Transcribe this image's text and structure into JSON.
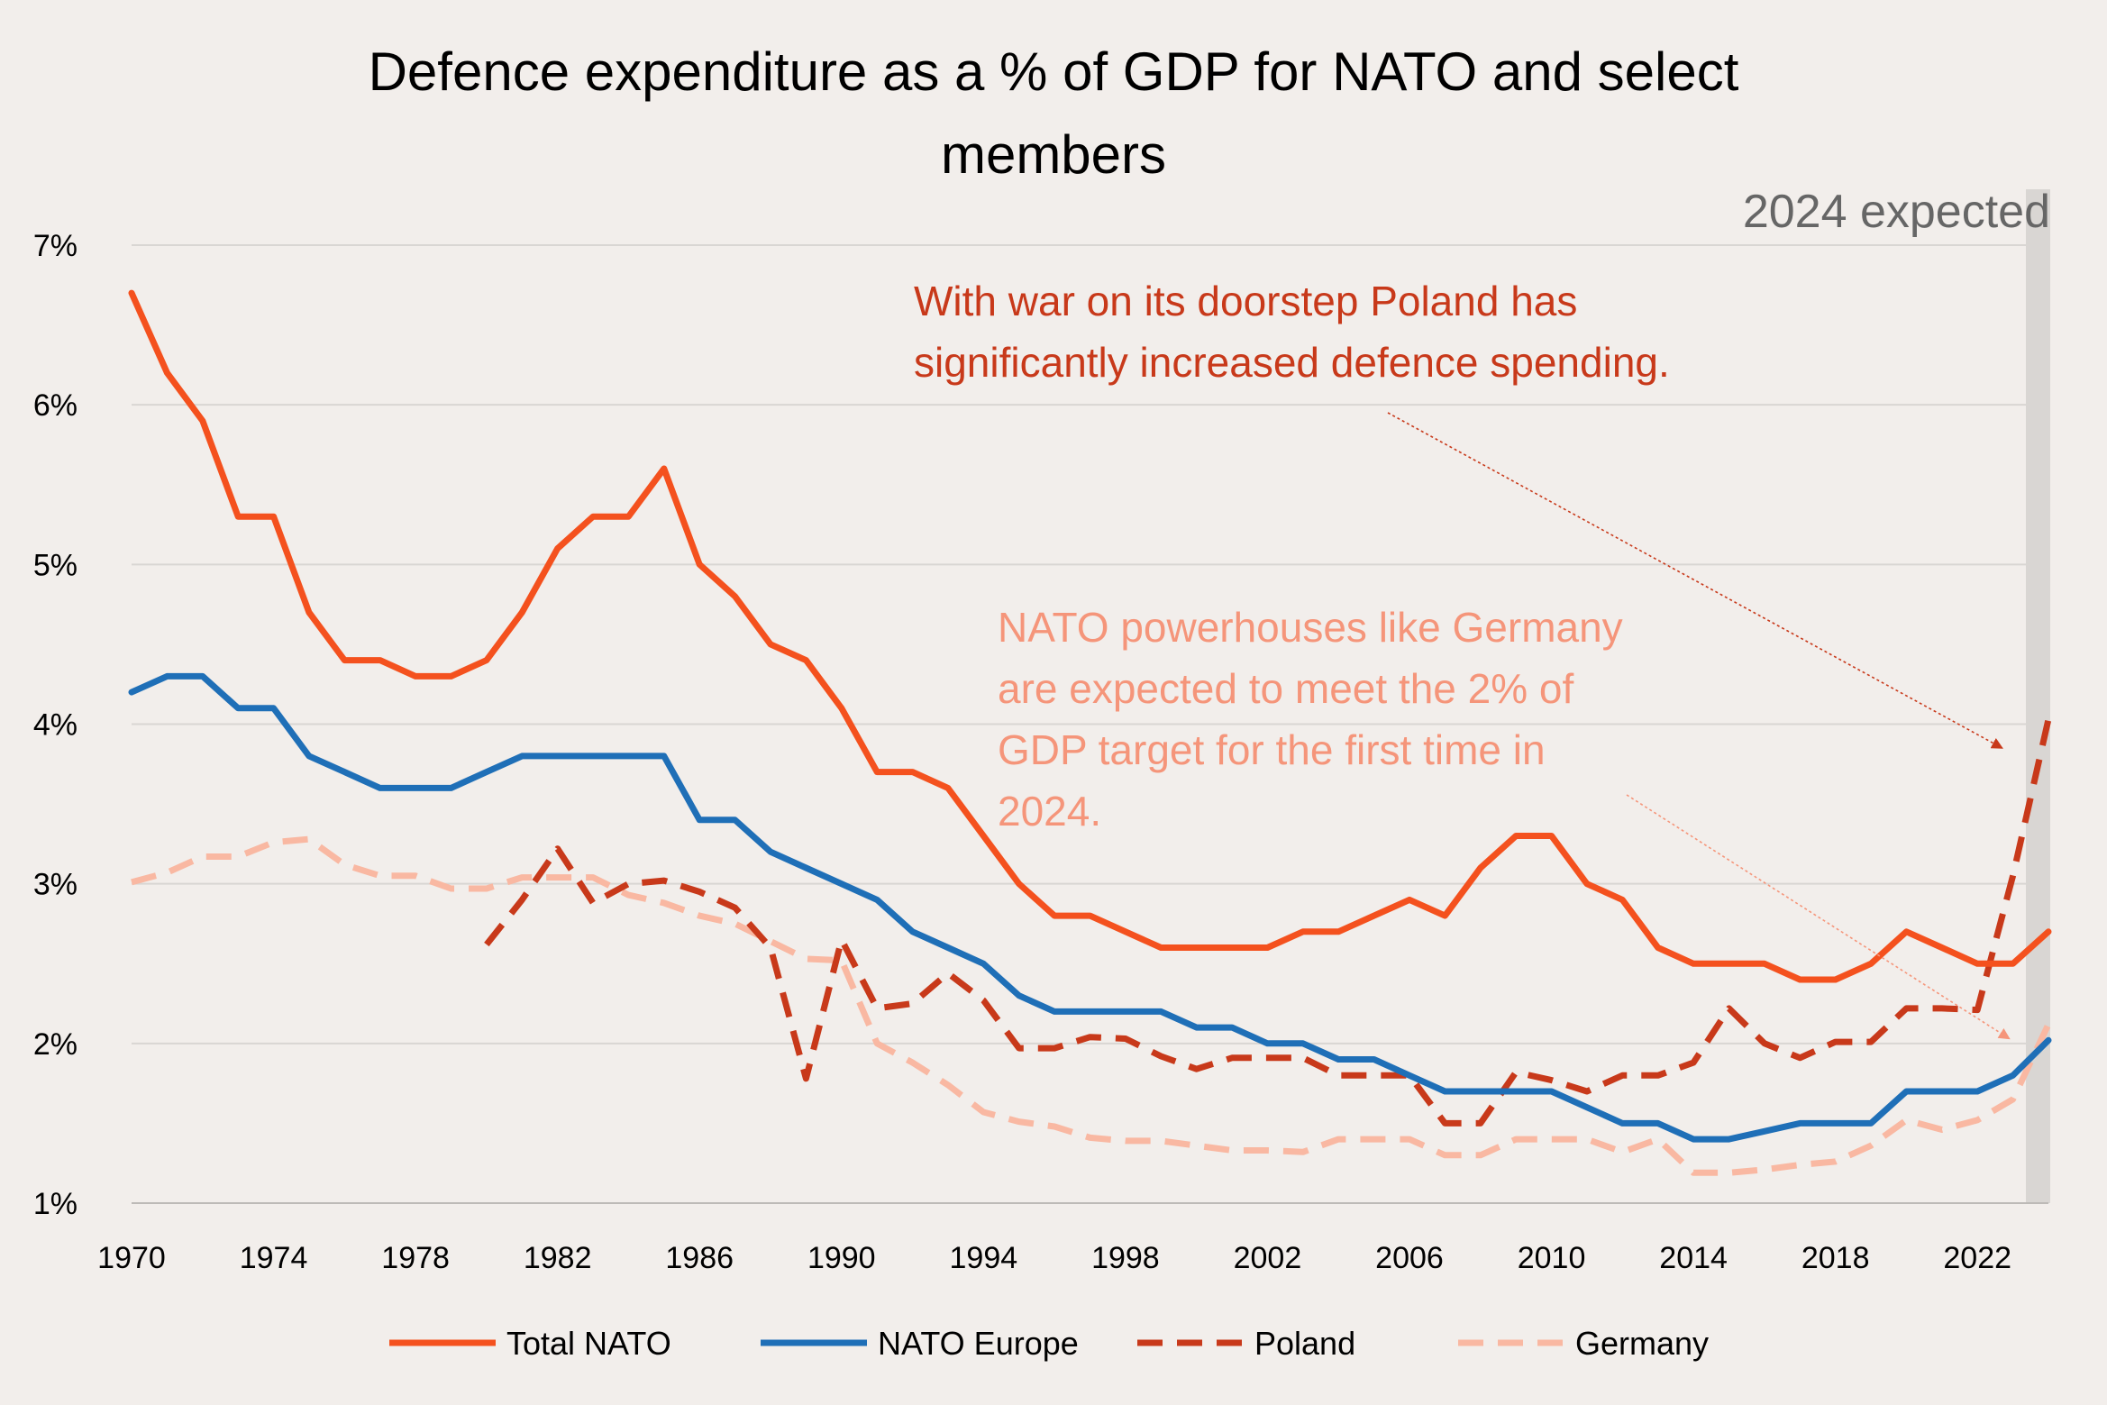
{
  "chart_data": {
    "type": "line",
    "title": "Defence expenditure as a % of GDP for NATO and select members",
    "xlabel": "",
    "ylabel": "",
    "xlim": [
      1970,
      2024
    ],
    "ylim": [
      1,
      7
    ],
    "x_ticks": [
      "1970",
      "1974",
      "1978",
      "1982",
      "1986",
      "1990",
      "1994",
      "1998",
      "2002",
      "2006",
      "2010",
      "2014",
      "2018",
      "2022"
    ],
    "y_ticks": [
      "1%",
      "2%",
      "3%",
      "4%",
      "5%",
      "6%",
      "7%"
    ],
    "grid": "horizontal",
    "legend_position": "bottom",
    "highlight": {
      "label": "2024 expected",
      "x": 2024,
      "color": "#d9d6d3"
    },
    "series": [
      {
        "name": "Total NATO",
        "color": "#f4511e",
        "style": "solid",
        "x": [
          1970,
          1971,
          1972,
          1973,
          1974,
          1975,
          1976,
          1977,
          1978,
          1979,
          1980,
          1981,
          1982,
          1983,
          1984,
          1985,
          1986,
          1987,
          1988,
          1989,
          1990,
          1991,
          1992,
          1993,
          1994,
          1995,
          1996,
          1997,
          1998,
          1999,
          2000,
          2001,
          2002,
          2003,
          2004,
          2005,
          2006,
          2007,
          2008,
          2009,
          2010,
          2011,
          2012,
          2013,
          2014,
          2015,
          2016,
          2017,
          2018,
          2019,
          2020,
          2021,
          2022,
          2023,
          2024
        ],
        "values": [
          6.7,
          6.2,
          5.9,
          5.3,
          5.3,
          4.7,
          4.4,
          4.4,
          4.3,
          4.3,
          4.4,
          4.7,
          5.1,
          5.3,
          5.3,
          5.6,
          5.0,
          4.8,
          4.5,
          4.4,
          4.1,
          3.7,
          3.7,
          3.6,
          3.3,
          3.0,
          2.8,
          2.8,
          2.7,
          2.6,
          2.6,
          2.6,
          2.6,
          2.7,
          2.7,
          2.8,
          2.9,
          2.8,
          3.1,
          3.3,
          3.3,
          3.0,
          2.9,
          2.6,
          2.5,
          2.5,
          2.5,
          2.4,
          2.4,
          2.5,
          2.7,
          2.6,
          2.5,
          2.5,
          2.7
        ]
      },
      {
        "name": "NATO Europe",
        "color": "#1f6fb7",
        "style": "solid",
        "x": [
          1970,
          1971,
          1972,
          1973,
          1974,
          1975,
          1976,
          1977,
          1978,
          1979,
          1980,
          1981,
          1982,
          1983,
          1984,
          1985,
          1986,
          1987,
          1988,
          1989,
          1990,
          1991,
          1992,
          1993,
          1994,
          1995,
          1996,
          1997,
          1998,
          1999,
          2000,
          2001,
          2002,
          2003,
          2004,
          2005,
          2006,
          2007,
          2008,
          2009,
          2010,
          2011,
          2012,
          2013,
          2014,
          2015,
          2016,
          2017,
          2018,
          2019,
          2020,
          2021,
          2022,
          2023,
          2024
        ],
        "values": [
          4.2,
          4.3,
          4.3,
          4.1,
          4.1,
          3.8,
          3.7,
          3.6,
          3.6,
          3.6,
          3.7,
          3.8,
          3.8,
          3.8,
          3.8,
          3.8,
          3.4,
          3.4,
          3.2,
          3.1,
          3.0,
          2.9,
          2.7,
          2.6,
          2.5,
          2.3,
          2.2,
          2.2,
          2.2,
          2.2,
          2.1,
          2.1,
          2.0,
          2.0,
          1.9,
          1.9,
          1.8,
          1.7,
          1.7,
          1.7,
          1.7,
          1.6,
          1.5,
          1.5,
          1.4,
          1.4,
          1.45,
          1.5,
          1.5,
          1.5,
          1.7,
          1.7,
          1.7,
          1.8,
          2.02
        ]
      },
      {
        "name": "Poland",
        "color": "#c8391a",
        "style": "dashed",
        "x": [
          1980,
          1981,
          1982,
          1983,
          1984,
          1985,
          1986,
          1987,
          1988,
          1989,
          1990,
          1991,
          1992,
          1993,
          1994,
          1995,
          1996,
          1997,
          1998,
          1999,
          2000,
          2001,
          2002,
          2003,
          2004,
          2005,
          2006,
          2007,
          2008,
          2009,
          2010,
          2011,
          2012,
          2013,
          2014,
          2015,
          2016,
          2017,
          2018,
          2019,
          2020,
          2021,
          2022,
          2023,
          2024
        ],
        "values": [
          2.62,
          2.9,
          3.22,
          2.88,
          3.0,
          3.02,
          2.95,
          2.85,
          2.6,
          1.78,
          2.65,
          2.22,
          2.25,
          2.44,
          2.27,
          1.97,
          1.97,
          2.04,
          2.03,
          1.92,
          1.84,
          1.91,
          1.91,
          1.91,
          1.8,
          1.8,
          1.8,
          1.5,
          1.5,
          1.82,
          1.77,
          1.7,
          1.8,
          1.8,
          1.88,
          2.22,
          2.0,
          1.91,
          2.01,
          2.01,
          2.22,
          2.22,
          2.21,
          3.05,
          4.03
        ]
      },
      {
        "name": "Germany",
        "color": "#f9b8a2",
        "style": "dashed",
        "x": [
          1970,
          1971,
          1972,
          1973,
          1974,
          1975,
          1976,
          1977,
          1978,
          1979,
          1980,
          1981,
          1982,
          1983,
          1984,
          1985,
          1986,
          1987,
          1988,
          1989,
          1990,
          1991,
          1992,
          1993,
          1994,
          1995,
          1996,
          1997,
          1998,
          1999,
          2000,
          2001,
          2002,
          2003,
          2004,
          2005,
          2006,
          2007,
          2008,
          2009,
          2010,
          2011,
          2012,
          2013,
          2014,
          2015,
          2016,
          2017,
          2018,
          2019,
          2020,
          2021,
          2022,
          2023,
          2024
        ],
        "values": [
          3.01,
          3.07,
          3.17,
          3.17,
          3.26,
          3.28,
          3.12,
          3.05,
          3.05,
          2.97,
          2.97,
          3.04,
          3.04,
          3.04,
          2.93,
          2.88,
          2.8,
          2.75,
          2.64,
          2.53,
          2.52,
          2.0,
          1.88,
          1.74,
          1.57,
          1.51,
          1.48,
          1.41,
          1.39,
          1.39,
          1.36,
          1.33,
          1.33,
          1.32,
          1.4,
          1.4,
          1.4,
          1.3,
          1.3,
          1.4,
          1.4,
          1.4,
          1.32,
          1.4,
          1.19,
          1.19,
          1.21,
          1.24,
          1.26,
          1.36,
          1.52,
          1.46,
          1.52,
          1.65,
          2.12
        ]
      }
    ],
    "annotations": [
      {
        "lines": [
          "With war on its doorstep Poland has",
          "significantly increased defence spending."
        ],
        "color": "#c8391a",
        "arrow_to": {
          "x": 2022.7,
          "y": 3.85
        }
      },
      {
        "lines": [
          "NATO powerhouses like Germany",
          "are expected to meet the 2% of",
          "GDP target for the first time in",
          "2024."
        ],
        "color": "#f5957a",
        "arrow_to": {
          "x": 2022.9,
          "y": 2.03
        }
      }
    ]
  }
}
